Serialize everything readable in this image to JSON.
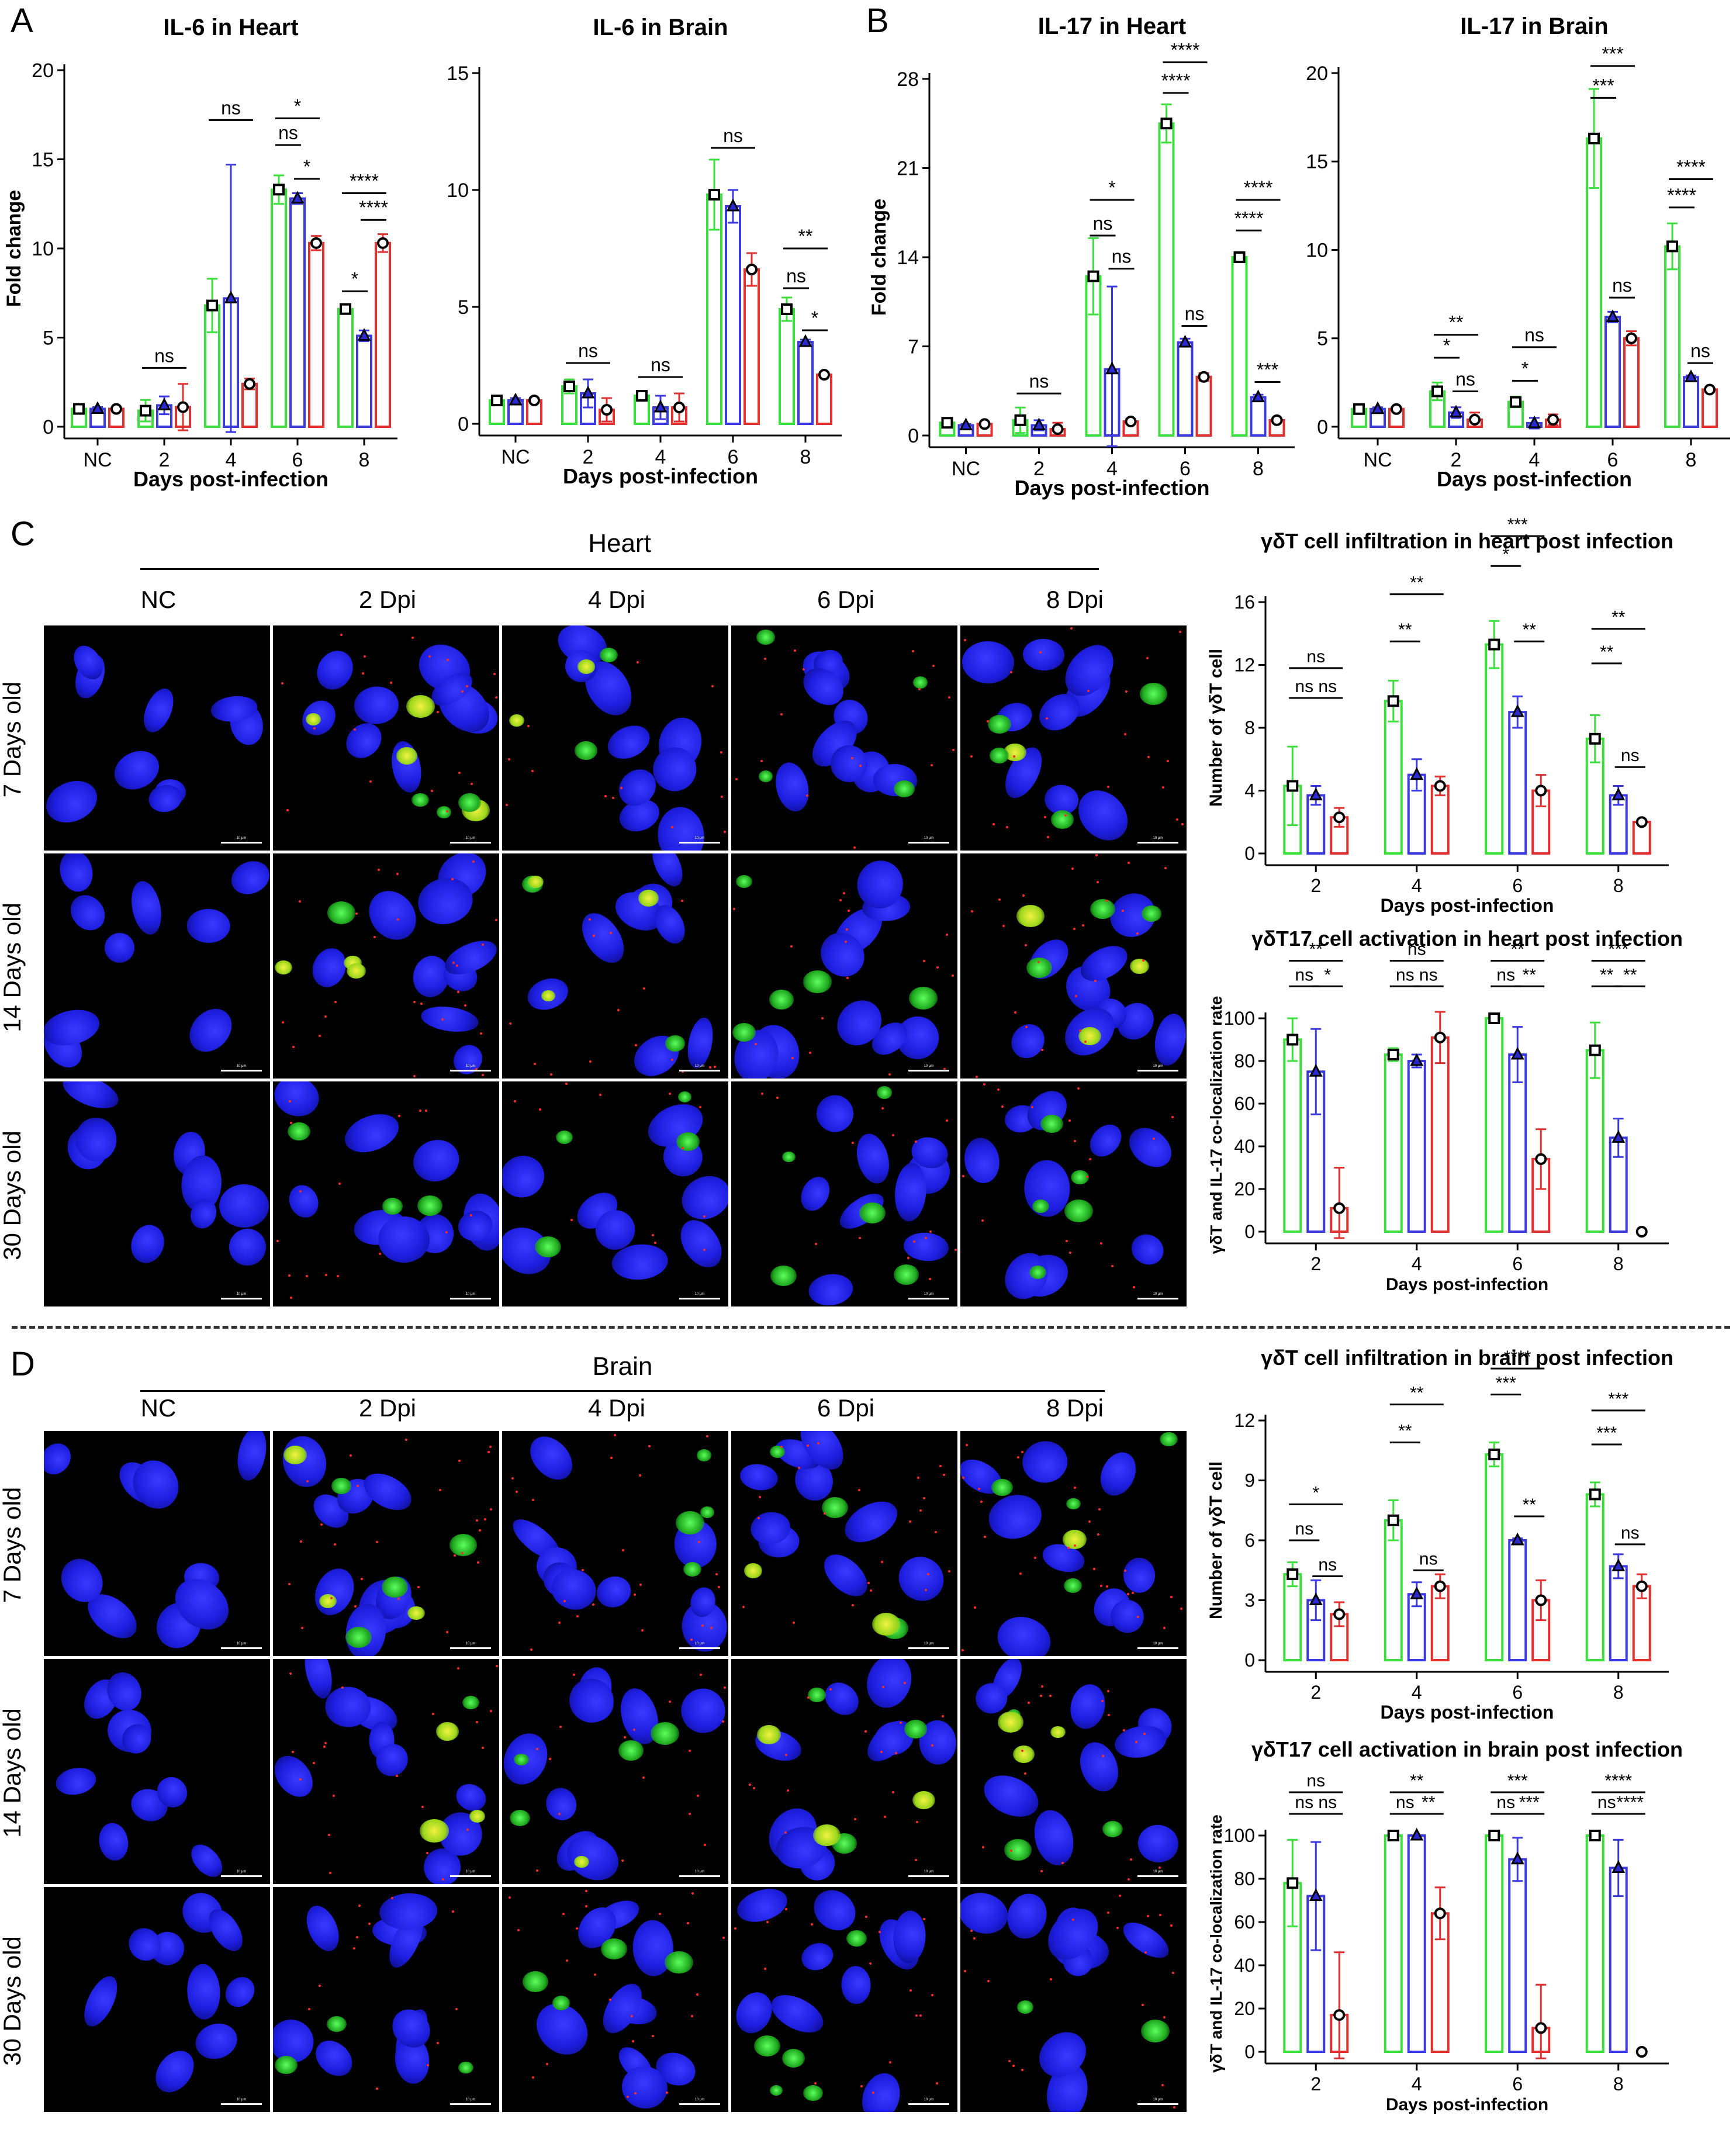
{
  "panel_letters": {
    "A": "A",
    "B": "B",
    "C": "C",
    "D": "D"
  },
  "colors": {
    "green": "#3ce03c",
    "blue": "#3a3ae0",
    "red": "#e03030",
    "black": "#000000"
  },
  "micrographs": {
    "C": {
      "tissue": "Heart",
      "columns": [
        "NC",
        "2 Dpi",
        "4 Dpi",
        "6 Dpi",
        "8 Dpi"
      ],
      "rows": [
        "7 Days old",
        "14 Days old",
        "30 Days old"
      ],
      "scalebar": "10 μm"
    },
    "D": {
      "tissue": "Brain",
      "columns": [
        "NC",
        "2 Dpi",
        "4 Dpi",
        "6 Dpi",
        "8 Dpi"
      ],
      "rows": [
        "7 Days old",
        "14 Days old",
        "30 Days old"
      ],
      "scalebar": "10 μm"
    }
  },
  "chart_data": [
    {
      "id": "il6_heart",
      "type": "bar",
      "title": "IL-6 in Heart",
      "xlabel": "Days post-infection",
      "ylabel": "Fold change",
      "categories": [
        "NC",
        "2",
        "4",
        "6",
        "8"
      ],
      "yticks": [
        0,
        5,
        10,
        15,
        20
      ],
      "ylim": [
        0,
        20
      ],
      "series": [
        {
          "values": [
            1.0,
            0.9,
            6.8,
            13.3,
            6.6
          ],
          "err": [
            0.1,
            0.6,
            1.5,
            0.8,
            0.2
          ]
        },
        {
          "values": [
            1.0,
            1.2,
            7.2,
            12.8,
            5.1
          ],
          "err": [
            0.1,
            0.5,
            7.5,
            0.3,
            0.3
          ]
        },
        {
          "values": [
            1.0,
            1.1,
            2.4,
            10.3,
            10.3
          ],
          "err": [
            0.1,
            1.3,
            0.3,
            0.4,
            0.5
          ]
        }
      ],
      "sig": [
        {
          "g": 1,
          "a": 0,
          "b": 2,
          "y": 3.3,
          "t": "ns"
        },
        {
          "g": 2,
          "a": 0,
          "b": 2,
          "y": 17.2,
          "t": "ns"
        },
        {
          "g": 3,
          "a": 0,
          "b": 1,
          "y": 15.8,
          "t": "ns"
        },
        {
          "g": 3,
          "a": 1,
          "b": 2,
          "y": 13.9,
          "t": "*"
        },
        {
          "g": 3,
          "a": 0,
          "b": 2,
          "y": 17.3,
          "t": "*"
        },
        {
          "g": 4,
          "a": 0,
          "b": 1,
          "y": 7.6,
          "t": "*"
        },
        {
          "g": 4,
          "a": 0,
          "b": 2,
          "y": 13.1,
          "t": "****"
        },
        {
          "g": 4,
          "a": 1,
          "b": 2,
          "y": 11.6,
          "t": "****"
        }
      ]
    },
    {
      "id": "il6_brain",
      "type": "bar",
      "title": "IL-6 in Brain",
      "xlabel": "Days post-infection",
      "ylabel": "",
      "categories": [
        "NC",
        "2",
        "4",
        "6",
        "8"
      ],
      "yticks": [
        0,
        5,
        10,
        15
      ],
      "ylim": [
        0,
        15
      ],
      "series": [
        {
          "values": [
            1.0,
            1.6,
            1.2,
            9.8,
            4.9
          ],
          "err": [
            0.1,
            0.3,
            0.2,
            1.5,
            0.5
          ]
        },
        {
          "values": [
            1.0,
            1.3,
            0.7,
            9.3,
            3.5
          ],
          "err": [
            0.1,
            0.6,
            0.5,
            0.7,
            0.1
          ]
        },
        {
          "values": [
            1.0,
            0.6,
            0.7,
            6.6,
            2.1
          ],
          "err": [
            0.1,
            0.5,
            0.6,
            0.7,
            0.1
          ]
        }
      ],
      "sig": [
        {
          "g": 1,
          "a": 0,
          "b": 2,
          "y": 2.6,
          "t": "ns"
        },
        {
          "g": 2,
          "a": 0,
          "b": 2,
          "y": 2.0,
          "t": "ns"
        },
        {
          "g": 3,
          "a": 0,
          "b": 2,
          "y": 11.8,
          "t": "ns"
        },
        {
          "g": 4,
          "a": 0,
          "b": 1,
          "y": 5.8,
          "t": "ns"
        },
        {
          "g": 4,
          "a": 1,
          "b": 2,
          "y": 4.0,
          "t": "*"
        },
        {
          "g": 4,
          "a": 0,
          "b": 2,
          "y": 7.5,
          "t": "**"
        }
      ]
    },
    {
      "id": "il17_heart",
      "type": "bar",
      "title": "IL-17 in Heart",
      "xlabel": "Days post-infection",
      "ylabel": "Fold change",
      "categories": [
        "NC",
        "2",
        "4",
        "6",
        "8"
      ],
      "yticks": [
        0,
        7,
        14,
        21,
        28
      ],
      "ylim": [
        0,
        28
      ],
      "series": [
        {
          "values": [
            1.0,
            1.2,
            12.5,
            24.5,
            14.0
          ],
          "err": [
            0.1,
            1.0,
            3.0,
            1.5,
            0.3
          ]
        },
        {
          "values": [
            0.8,
            0.8,
            5.2,
            7.3,
            3.0
          ],
          "err": [
            0.1,
            0.4,
            6.5,
            0.3,
            0.2
          ]
        },
        {
          "values": [
            0.9,
            0.5,
            1.1,
            4.6,
            1.2
          ],
          "err": [
            0.1,
            0.5,
            0.2,
            0.3,
            0.1
          ]
        }
      ],
      "sig": [
        {
          "g": 1,
          "a": 0,
          "b": 2,
          "y": 3.3,
          "t": "ns"
        },
        {
          "g": 2,
          "a": 0,
          "b": 1,
          "y": 15.7,
          "t": "ns"
        },
        {
          "g": 2,
          "a": 1,
          "b": 2,
          "y": 13.1,
          "t": "ns"
        },
        {
          "g": 2,
          "a": 0,
          "b": 2,
          "y": 18.5,
          "t": "*"
        },
        {
          "g": 3,
          "a": 0,
          "b": 1,
          "y": 26.9,
          "t": "****"
        },
        {
          "g": 3,
          "a": 1,
          "b": 2,
          "y": 8.6,
          "t": "ns"
        },
        {
          "g": 3,
          "a": 0,
          "b": 2,
          "y": 29.3,
          "t": "****"
        },
        {
          "g": 4,
          "a": 0,
          "b": 1,
          "y": 16.1,
          "t": "****"
        },
        {
          "g": 4,
          "a": 0,
          "b": 2,
          "y": 18.5,
          "t": "****"
        },
        {
          "g": 4,
          "a": 1,
          "b": 2,
          "y": 4.2,
          "t": "***"
        }
      ]
    },
    {
      "id": "il17_brain",
      "type": "bar",
      "title": "IL-17 in Brain",
      "xlabel": "Days post-infection",
      "ylabel": "",
      "categories": [
        "NC",
        "2",
        "4",
        "6",
        "8"
      ],
      "yticks": [
        0,
        5,
        10,
        15,
        20
      ],
      "ylim": [
        0,
        20
      ],
      "series": [
        {
          "values": [
            1.0,
            2.0,
            1.4,
            16.3,
            10.2
          ],
          "err": [
            0.1,
            0.5,
            0.3,
            2.8,
            1.3
          ]
        },
        {
          "values": [
            1.0,
            0.8,
            0.2,
            6.2,
            2.8
          ],
          "err": [
            0.1,
            0.3,
            0.3,
            0.3,
            0.1
          ]
        },
        {
          "values": [
            1.0,
            0.4,
            0.4,
            5.0,
            2.1
          ],
          "err": [
            0.1,
            0.4,
            0.3,
            0.4,
            0.1
          ]
        }
      ],
      "sig": [
        {
          "g": 1,
          "a": 0,
          "b": 1,
          "y": 3.9,
          "t": "*"
        },
        {
          "g": 1,
          "a": 1,
          "b": 2,
          "y": 2.0,
          "t": "ns"
        },
        {
          "g": 1,
          "a": 0,
          "b": 2,
          "y": 5.2,
          "t": "**"
        },
        {
          "g": 2,
          "a": 0,
          "b": 1,
          "y": 2.6,
          "t": "*"
        },
        {
          "g": 2,
          "a": 0,
          "b": 2,
          "y": 4.5,
          "t": "ns"
        },
        {
          "g": 3,
          "a": 0,
          "b": 1,
          "y": 18.6,
          "t": "***"
        },
        {
          "g": 3,
          "a": 0,
          "b": 2,
          "y": 20.4,
          "t": "***"
        },
        {
          "g": 3,
          "a": 1,
          "b": 2,
          "y": 7.3,
          "t": "ns"
        },
        {
          "g": 4,
          "a": 0,
          "b": 1,
          "y": 12.4,
          "t": "****"
        },
        {
          "g": 4,
          "a": 0,
          "b": 2,
          "y": 14.0,
          "t": "****"
        },
        {
          "g": 4,
          "a": 1,
          "b": 2,
          "y": 3.6,
          "t": "ns"
        }
      ]
    },
    {
      "id": "gdt_heart",
      "type": "bar",
      "title": "γδT cell infiltration in heart post infection",
      "xlabel": "Days post-infection",
      "ylabel": "Number of γδT cell",
      "categories": [
        "2",
        "4",
        "6",
        "8"
      ],
      "yticks": [
        0,
        4,
        8,
        12,
        16
      ],
      "ylim": [
        0,
        16
      ],
      "series": [
        {
          "values": [
            4.3,
            9.7,
            13.3,
            7.3
          ],
          "err": [
            2.5,
            1.3,
            1.5,
            1.5
          ]
        },
        {
          "values": [
            3.7,
            5.0,
            9.0,
            3.7
          ],
          "err": [
            0.6,
            1.0,
            1.0,
            0.6
          ]
        },
        {
          "values": [
            2.3,
            4.3,
            4.0,
            2.0
          ],
          "err": [
            0.6,
            0.6,
            1.0,
            0.1
          ]
        }
      ],
      "sig": [
        {
          "g": 0,
          "a": 0,
          "b": 1,
          "y": 9.9,
          "t": "ns"
        },
        {
          "g": 0,
          "a": 1,
          "b": 2,
          "y": 9.9,
          "t": "ns"
        },
        {
          "g": 0,
          "a": 0,
          "b": 2,
          "y": 11.8,
          "t": "ns"
        },
        {
          "g": 1,
          "a": 0,
          "b": 1,
          "y": 13.5,
          "t": "**"
        },
        {
          "g": 1,
          "a": 0,
          "b": 2,
          "y": 16.5,
          "t": "**"
        },
        {
          "g": 2,
          "a": 0,
          "b": 1,
          "y": 18.3,
          "t": "*"
        },
        {
          "g": 2,
          "a": 0,
          "b": 2,
          "y": 20.2,
          "t": "***"
        },
        {
          "g": 2,
          "a": 1,
          "b": 2,
          "y": 13.5,
          "t": "**"
        },
        {
          "g": 3,
          "a": 0,
          "b": 1,
          "y": 12.1,
          "t": "**"
        },
        {
          "g": 3,
          "a": 0,
          "b": 2,
          "y": 14.3,
          "t": "**"
        },
        {
          "g": 3,
          "a": 1,
          "b": 2,
          "y": 5.5,
          "t": "ns"
        }
      ]
    },
    {
      "id": "gdt17_heart",
      "type": "bar",
      "title": "γδT17 cell activation in heart post infection",
      "xlabel": "Days post-infection",
      "ylabel": "γδT and IL-17 co-localization rate",
      "categories": [
        "2",
        "4",
        "6",
        "8"
      ],
      "yticks": [
        0,
        20,
        40,
        60,
        80,
        100
      ],
      "ylim": [
        0,
        100
      ],
      "series": [
        {
          "values": [
            90,
            83,
            100,
            85
          ],
          "err": [
            10,
            3,
            1,
            13
          ]
        },
        {
          "values": [
            75,
            80,
            83,
            44
          ],
          "err": [
            20,
            3,
            13,
            9
          ]
        },
        {
          "values": [
            11,
            91,
            34,
            0
          ],
          "err": [
            19,
            12,
            14,
            1
          ]
        }
      ],
      "sig": [
        {
          "g": 0,
          "a": 0,
          "b": 1,
          "y": 115,
          "t": "ns"
        },
        {
          "g": 0,
          "a": 1,
          "b": 2,
          "y": 115,
          "t": "*"
        },
        {
          "g": 0,
          "a": 0,
          "b": 2,
          "y": 127,
          "t": "**"
        },
        {
          "g": 1,
          "a": 0,
          "b": 1,
          "y": 115,
          "t": "ns"
        },
        {
          "g": 1,
          "a": 1,
          "b": 2,
          "y": 115,
          "t": "ns"
        },
        {
          "g": 1,
          "a": 0,
          "b": 2,
          "y": 127,
          "t": "ns"
        },
        {
          "g": 2,
          "a": 0,
          "b": 1,
          "y": 115,
          "t": "ns"
        },
        {
          "g": 2,
          "a": 1,
          "b": 2,
          "y": 115,
          "t": "**"
        },
        {
          "g": 2,
          "a": 0,
          "b": 2,
          "y": 127,
          "t": "**"
        },
        {
          "g": 3,
          "a": 0,
          "b": 1,
          "y": 115,
          "t": "**"
        },
        {
          "g": 3,
          "a": 1,
          "b": 2,
          "y": 115,
          "t": "**"
        },
        {
          "g": 3,
          "a": 0,
          "b": 2,
          "y": 127,
          "t": "***"
        }
      ]
    },
    {
      "id": "gdt_brain",
      "type": "bar",
      "title": "γδT cell infiltration in brain post infection",
      "xlabel": "Days post-infection",
      "ylabel": "Number of γδT cell",
      "categories": [
        "2",
        "4",
        "6",
        "8"
      ],
      "yticks": [
        0,
        3,
        6,
        9,
        12
      ],
      "ylim": [
        0,
        12
      ],
      "series": [
        {
          "values": [
            4.3,
            7.0,
            10.3,
            8.3
          ],
          "err": [
            0.6,
            1.0,
            0.6,
            0.6
          ]
        },
        {
          "values": [
            3.0,
            3.3,
            6.0,
            4.7
          ],
          "err": [
            1.0,
            0.6,
            0.1,
            0.6
          ]
        },
        {
          "values": [
            2.3,
            3.7,
            3.0,
            3.7
          ],
          "err": [
            0.6,
            0.6,
            1.0,
            0.6
          ]
        }
      ],
      "sig": [
        {
          "g": 0,
          "a": 0,
          "b": 1,
          "y": 6.0,
          "t": "ns"
        },
        {
          "g": 0,
          "a": 1,
          "b": 2,
          "y": 4.2,
          "t": "ns"
        },
        {
          "g": 0,
          "a": 0,
          "b": 2,
          "y": 7.8,
          "t": "*"
        },
        {
          "g": 1,
          "a": 0,
          "b": 1,
          "y": 10.9,
          "t": "**"
        },
        {
          "g": 1,
          "a": 0,
          "b": 2,
          "y": 12.8,
          "t": "**"
        },
        {
          "g": 1,
          "a": 1,
          "b": 2,
          "y": 4.5,
          "t": "ns"
        },
        {
          "g": 2,
          "a": 0,
          "b": 1,
          "y": 13.3,
          "t": "***"
        },
        {
          "g": 2,
          "a": 0,
          "b": 2,
          "y": 14.6,
          "t": "****"
        },
        {
          "g": 2,
          "a": 1,
          "b": 2,
          "y": 7.2,
          "t": "**"
        },
        {
          "g": 3,
          "a": 0,
          "b": 1,
          "y": 10.8,
          "t": "***"
        },
        {
          "g": 3,
          "a": 0,
          "b": 2,
          "y": 12.5,
          "t": "***"
        },
        {
          "g": 3,
          "a": 1,
          "b": 2,
          "y": 5.8,
          "t": "ns"
        }
      ]
    },
    {
      "id": "gdt17_brain",
      "type": "bar",
      "title": "γδT17 cell activation in brain post infection",
      "xlabel": "Days post-infection",
      "ylabel": "γδT and IL-17 co-localization rate",
      "categories": [
        "2",
        "4",
        "6",
        "8"
      ],
      "yticks": [
        0,
        20,
        40,
        60,
        80,
        100
      ],
      "ylim": [
        0,
        100
      ],
      "series": [
        {
          "values": [
            78,
            100,
            100,
            100
          ],
          "err": [
            20,
            0,
            0,
            0
          ]
        },
        {
          "values": [
            72,
            100,
            89,
            85
          ],
          "err": [
            25,
            0,
            10,
            13
          ]
        },
        {
          "values": [
            17,
            64,
            11,
            0
          ],
          "err": [
            29,
            12,
            20,
            0
          ]
        }
      ],
      "sig": [
        {
          "g": 0,
          "a": 0,
          "b": 1,
          "y": 110,
          "t": "ns"
        },
        {
          "g": 0,
          "a": 1,
          "b": 2,
          "y": 110,
          "t": "ns"
        },
        {
          "g": 0,
          "a": 0,
          "b": 2,
          "y": 120,
          "t": "ns"
        },
        {
          "g": 1,
          "a": 0,
          "b": 1,
          "y": 110,
          "t": "ns"
        },
        {
          "g": 1,
          "a": 1,
          "b": 2,
          "y": 110,
          "t": "**"
        },
        {
          "g": 1,
          "a": 0,
          "b": 2,
          "y": 120,
          "t": "**"
        },
        {
          "g": 2,
          "a": 0,
          "b": 1,
          "y": 110,
          "t": "ns"
        },
        {
          "g": 2,
          "a": 1,
          "b": 2,
          "y": 110,
          "t": "***"
        },
        {
          "g": 2,
          "a": 0,
          "b": 2,
          "y": 120,
          "t": "***"
        },
        {
          "g": 3,
          "a": 0,
          "b": 1,
          "y": 110,
          "t": "ns"
        },
        {
          "g": 3,
          "a": 1,
          "b": 2,
          "y": 110,
          "t": "****"
        },
        {
          "g": 3,
          "a": 0,
          "b": 2,
          "y": 120,
          "t": "****"
        }
      ]
    }
  ]
}
